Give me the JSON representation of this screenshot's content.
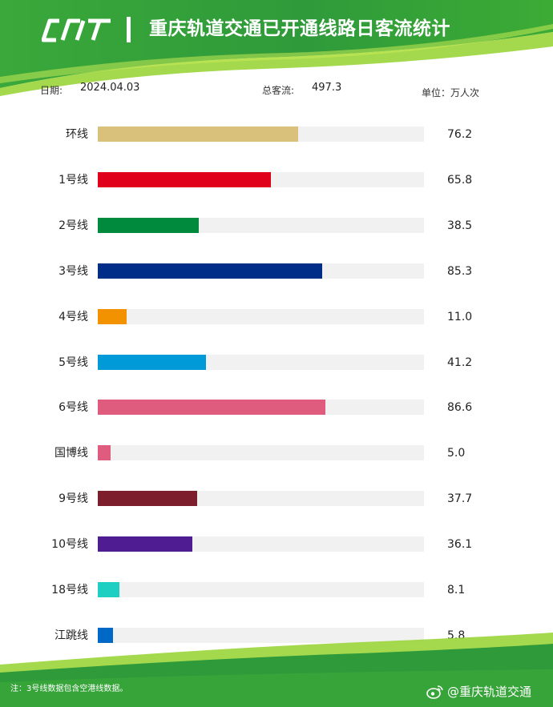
{
  "header": {
    "title": "重庆轨道交通已开通线路日客流统计",
    "colors": {
      "dark_green": "#2f9a3a",
      "light_green": "#8cd12f"
    }
  },
  "meta": {
    "date_label": "日期:",
    "date_value": "2024.04.03",
    "total_label": "总客流:",
    "total_value": "497.3",
    "unit": "单位：万人次"
  },
  "chart_data": {
    "type": "bar",
    "orientation": "horizontal",
    "title": "",
    "xlabel": "",
    "ylabel": "",
    "unit": "万人次",
    "xlim": [
      0,
      124
    ],
    "grid": false,
    "categories": [
      "环线",
      "1号线",
      "2号线",
      "3号线",
      "4号线",
      "5号线",
      "6号线",
      "国博线",
      "9号线",
      "10号线",
      "18号线",
      "江跳线"
    ],
    "values": [
      76.2,
      65.8,
      38.5,
      85.3,
      11.0,
      41.2,
      86.6,
      5.0,
      37.7,
      36.1,
      8.1,
      5.8
    ],
    "value_labels": [
      "76.2",
      "65.8",
      "38.5",
      "85.3",
      "11.0",
      "41.2",
      "86.6",
      "5.0",
      "37.7",
      "36.1",
      "8.1",
      "5.8"
    ],
    "colors": [
      "#d9c17c",
      "#e0001b",
      "#008a3e",
      "#002d87",
      "#f39200",
      "#009ad9",
      "#e05c7e",
      "#e05c7e",
      "#7d1e2c",
      "#4f1d91",
      "#1fcfc1",
      "#0068c7"
    ]
  },
  "footer": {
    "note": "注：3号线数据包含空港线数据。",
    "watermark": "@重庆轨道交通",
    "watermark_icon": "weibo-icon"
  }
}
